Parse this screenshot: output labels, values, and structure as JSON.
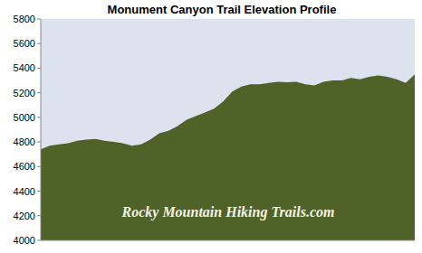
{
  "chart_data": {
    "type": "area",
    "title": "Monument Canyon Trail Elevation Profile",
    "annotation": "Rocky Mountain Hiking Trails.com",
    "x": [
      0,
      1,
      2,
      3,
      4,
      5,
      6,
      7,
      8,
      9,
      10,
      11,
      12,
      13,
      14,
      15,
      16,
      17,
      18,
      19,
      20,
      21,
      22,
      23,
      24,
      25,
      26,
      27,
      28,
      29,
      30,
      31,
      32,
      33,
      34,
      35,
      36,
      37,
      38,
      39,
      40,
      41
    ],
    "values": [
      4740,
      4770,
      4780,
      4790,
      4810,
      4820,
      4825,
      4810,
      4800,
      4790,
      4770,
      4780,
      4820,
      4870,
      4890,
      4930,
      4980,
      5010,
      5040,
      5070,
      5130,
      5210,
      5250,
      5270,
      5270,
      5280,
      5290,
      5285,
      5290,
      5270,
      5260,
      5290,
      5300,
      5300,
      5320,
      5310,
      5330,
      5340,
      5330,
      5310,
      5280,
      5350
    ],
    "color": "#4f6228",
    "xlim": [
      0,
      41
    ],
    "ylim": [
      4000,
      5800
    ],
    "yticks": [
      4000,
      4200,
      4400,
      4600,
      4800,
      5000,
      5200,
      5400,
      5600,
      5800
    ],
    "grid": false,
    "tick_labels": "y"
  }
}
